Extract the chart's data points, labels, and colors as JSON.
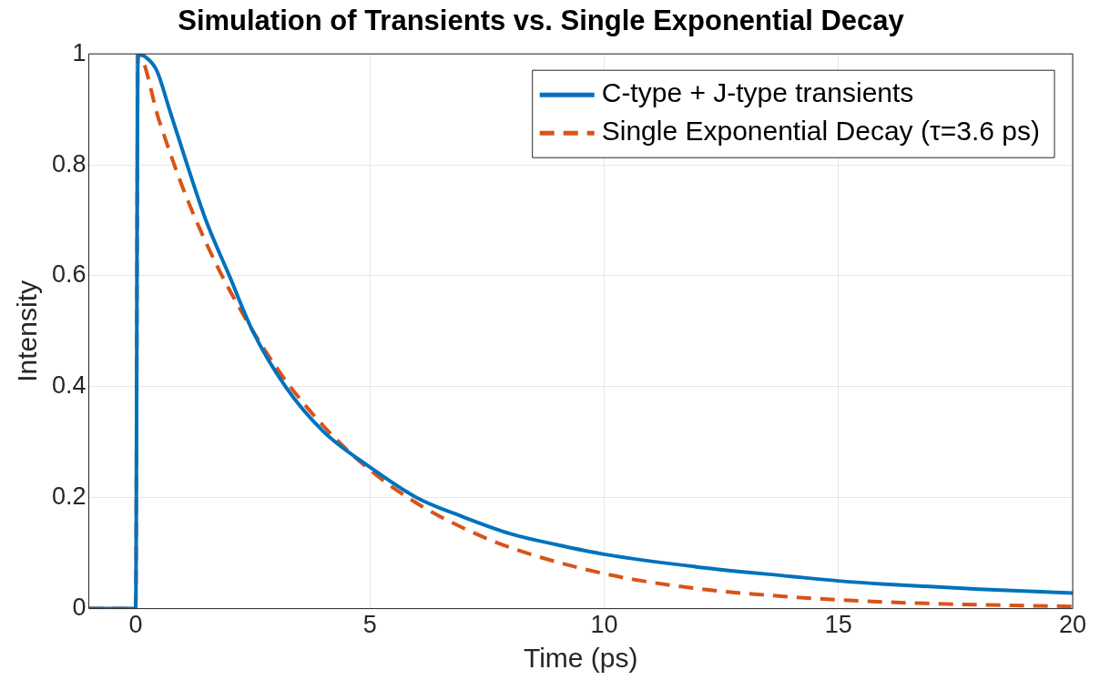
{
  "chart_data": {
    "type": "line",
    "title": "Simulation of Transients vs. Single Exponential Decay",
    "xlabel": "Time (ps)",
    "ylabel": "Intensity",
    "xlim": [
      -1,
      20
    ],
    "xticks": [
      0,
      5,
      10,
      15,
      20
    ],
    "ylim": [
      0,
      1
    ],
    "yticks": [
      0,
      0.2,
      0.4,
      0.6,
      0.8,
      1
    ],
    "grid": true,
    "legend": "top right",
    "marker": "none",
    "series": [
      {
        "name": "C-type + J-type transients",
        "color": "#0072bd",
        "line_style": "solid",
        "x": [
          -1,
          0,
          0.05,
          0.2,
          0.45,
          0.72,
          1.1,
          1.5,
          2,
          2.5,
          3.2,
          4,
          5,
          6,
          7,
          8,
          9,
          10,
          12,
          14,
          15,
          16,
          18,
          20
        ],
        "values": [
          0,
          0,
          1,
          0.995,
          0.97,
          0.9,
          0.8,
          0.7,
          0.6,
          0.5,
          0.4,
          0.32,
          0.255,
          0.2,
          0.165,
          0.135,
          0.115,
          0.098,
          0.075,
          0.058,
          0.05,
          0.044,
          0.035,
          0.028
        ]
      },
      {
        "name": "Single Exponential Decay (τ=3.6 ps)",
        "color": "#d95319",
        "line_style": "dashed",
        "x": [
          -1,
          0,
          0.05,
          0.5,
          1,
          1.5,
          2,
          3,
          4,
          5,
          6,
          7,
          8,
          10,
          12,
          14,
          16,
          18,
          20
        ],
        "values": [
          0,
          0,
          1,
          0.88,
          0.76,
          0.66,
          0.575,
          0.435,
          0.33,
          0.25,
          0.19,
          0.145,
          0.11,
          0.063,
          0.036,
          0.021,
          0.012,
          0.007,
          0.004
        ]
      }
    ]
  }
}
